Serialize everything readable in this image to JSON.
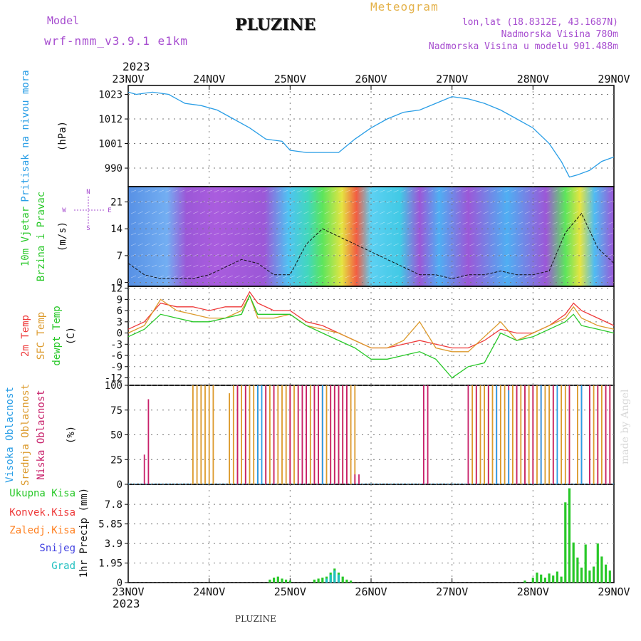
{
  "header": {
    "model_label": "Model",
    "model_name": "wrf-nmm_v3.9.1 e1km",
    "station": "PLUZINE",
    "product": "Meteogram",
    "location": "lon,lat (18.8312E, 43.1687N)",
    "altitude": "Nadmorska Visina 780m",
    "model_altitude": "Nadmorska Visina u modelu 901.488m",
    "footer_station": "PLUZINE",
    "credit": "made by Angel",
    "year_top": "2023",
    "year_bottom": "2023"
  },
  "colors": {
    "purple": "#a64ccf",
    "gold": "#e4b24a",
    "pressure": "#2a9ee6",
    "temp2m": "#ee3a3a",
    "sfc": "#dc9a2c",
    "dewpt": "#28c828",
    "high_cloud": "#2a9ee6",
    "mid_cloud": "#dc9a2c",
    "low_cloud": "#c8206a",
    "total_precip": "#28c828",
    "conv_precip": "#ee3a3a",
    "frozen_precip": "#ff8020",
    "snow": "#4040e0",
    "graupel": "#20c0c0"
  },
  "time_axis": {
    "labels": [
      "23NOV",
      "24NOV",
      "25NOV",
      "26NOV",
      "27NOV",
      "28NOV",
      "29NOV"
    ]
  },
  "chart_data": [
    {
      "type": "line",
      "panel": "pressure",
      "ylabel": [
        "Pritisak na nivou mora",
        "(hPa)"
      ],
      "yticks": [
        990,
        1001,
        1012,
        1023
      ],
      "ylim": [
        983,
        1027
      ],
      "x_days": [
        0,
        0.1,
        0.3,
        0.5,
        0.7,
        0.9,
        1.1,
        1.3,
        1.5,
        1.7,
        1.9,
        2.0,
        2.2,
        2.4,
        2.6,
        2.8,
        3.0,
        3.2,
        3.4,
        3.6,
        3.8,
        4.0,
        4.2,
        4.4,
        4.6,
        4.8,
        5.0,
        5.2,
        5.35,
        5.45,
        5.55,
        5.7,
        5.85,
        6.0
      ],
      "series": [
        {
          "values": [
            1024,
            1023,
            1024,
            1023,
            1019,
            1018,
            1016,
            1012,
            1008,
            1003,
            1002,
            998,
            997,
            997,
            997,
            1003,
            1008,
            1012,
            1015,
            1016,
            1019,
            1022,
            1021,
            1019,
            1016,
            1012,
            1008,
            1001,
            993,
            986,
            987,
            989,
            993,
            995
          ]
        }
      ]
    },
    {
      "type": "line",
      "panel": "wind",
      "ylabel": [
        "10m Vjetar",
        "Brzina i Pravac",
        "(m/s)"
      ],
      "compass": [
        "N",
        "S",
        "E",
        "W"
      ],
      "yticks": [
        0,
        7,
        14,
        21
      ],
      "ylim": [
        -1,
        25
      ],
      "x_days": [
        0,
        0.2,
        0.4,
        0.6,
        0.8,
        1.0,
        1.2,
        1.4,
        1.6,
        1.8,
        2.0,
        2.2,
        2.4,
        2.6,
        2.8,
        3.0,
        3.2,
        3.4,
        3.6,
        3.8,
        4.0,
        4.2,
        4.4,
        4.6,
        4.8,
        5.0,
        5.2,
        5.4,
        5.6,
        5.8,
        6.0
      ],
      "series": [
        {
          "values": [
            5,
            2,
            1,
            1,
            1,
            2,
            4,
            6,
            5,
            2,
            2,
            10,
            14,
            12,
            10,
            8,
            6,
            4,
            2,
            2,
            1,
            2,
            2,
            3,
            2,
            2,
            3,
            13,
            18,
            9,
            5
          ]
        }
      ]
    },
    {
      "type": "line",
      "panel": "temperature",
      "ylabel": [
        "2m Temp",
        "SFC Temp",
        "dewpt Temp",
        "(C)"
      ],
      "yticks": [
        -12,
        -9,
        -6,
        -3,
        0,
        3,
        6,
        9,
        12
      ],
      "ylim": [
        -14,
        12.5
      ],
      "x_days": [
        0,
        0.2,
        0.4,
        0.6,
        0.8,
        1.0,
        1.2,
        1.4,
        1.5,
        1.6,
        1.8,
        2.0,
        2.2,
        2.4,
        2.6,
        2.8,
        3.0,
        3.2,
        3.4,
        3.6,
        3.8,
        4.0,
        4.2,
        4.4,
        4.6,
        4.8,
        5.0,
        5.2,
        5.4,
        5.5,
        5.6,
        5.8,
        6.0
      ],
      "series": [
        {
          "name": "2m Temp",
          "values": [
            1,
            3,
            8,
            7,
            7,
            6,
            7,
            7,
            11,
            8,
            6,
            6,
            3,
            2,
            0,
            -2,
            -4,
            -4,
            -3,
            -2,
            -3,
            -4,
            -4,
            -2,
            1,
            0,
            0,
            2,
            5,
            8,
            6,
            4,
            2
          ]
        },
        {
          "name": "SFC Temp",
          "values": [
            0,
            2,
            9,
            6,
            5,
            4,
            4,
            6,
            10,
            4,
            4,
            5,
            2,
            1,
            0,
            -2,
            -4,
            -4,
            -2,
            3,
            -4,
            -5,
            -5,
            -1,
            3,
            -2,
            0,
            2,
            4,
            7,
            4,
            2,
            1
          ]
        },
        {
          "name": "dewpt Temp",
          "values": [
            -1,
            1,
            5,
            4,
            3,
            3,
            4,
            5,
            10,
            5,
            5,
            5,
            2,
            0,
            -2,
            -4,
            -7,
            -7,
            -6,
            -5,
            -7,
            -12,
            -9,
            -8,
            0,
            -2,
            -1,
            1,
            3,
            5,
            2,
            1,
            0
          ]
        }
      ]
    },
    {
      "type": "bar",
      "panel": "clouds",
      "ylabel": [
        "Visoka Oblacnost",
        "Srednja Oblacnost",
        "Niska Oblacnost",
        "(%)"
      ],
      "yticks": [
        0,
        25,
        50,
        75,
        100
      ],
      "ylim": [
        0,
        100
      ],
      "series": [
        {
          "name": "Visoka Oblacnost",
          "x_days": [
            1.6,
            1.65,
            2.4,
            4.55,
            4.7,
            5.1,
            5.3,
            5.6
          ],
          "values": [
            100,
            100,
            100,
            100,
            95,
            100,
            100,
            100
          ]
        },
        {
          "name": "Srednja Oblacnost",
          "x_days": [
            0.8,
            0.85,
            0.9,
            0.95,
            1.0,
            1.05,
            1.25,
            1.3,
            1.35,
            1.4,
            1.45,
            1.5,
            1.55,
            1.6,
            1.7,
            1.75,
            1.8,
            1.85,
            1.9,
            1.95,
            2.0,
            2.05,
            2.1,
            2.15,
            2.2,
            2.25,
            2.3,
            2.35,
            2.4,
            2.45,
            2.5,
            2.55,
            2.6,
            2.65,
            2.7,
            2.75,
            2.8,
            4.25,
            4.3,
            4.35,
            4.4,
            4.45,
            4.5,
            4.6,
            4.65,
            4.75,
            4.8,
            4.85,
            4.9,
            4.95,
            5.0,
            5.05,
            5.15,
            5.2,
            5.25,
            5.35,
            5.4,
            5.45,
            5.55,
            5.7,
            5.75,
            5.8,
            5.85,
            5.9,
            5.95
          ],
          "values": [
            100,
            100,
            100,
            100,
            100,
            100,
            92,
            100,
            100,
            100,
            100,
            100,
            100,
            100,
            100,
            100,
            100,
            100,
            100,
            100,
            100,
            100,
            100,
            100,
            100,
            100,
            100,
            100,
            100,
            100,
            100,
            100,
            100,
            100,
            100,
            100,
            100,
            100,
            100,
            100,
            100,
            100,
            100,
            100,
            100,
            100,
            100,
            100,
            100,
            100,
            100,
            100,
            100,
            100,
            100,
            100,
            100,
            100,
            100,
            100,
            100,
            100,
            100,
            100,
            100
          ]
        },
        {
          "name": "Niska Oblacnost",
          "x_days": [
            0.2,
            0.25,
            1.35,
            1.45,
            1.6,
            1.7,
            1.8,
            2.0,
            2.1,
            2.15,
            2.2,
            2.3,
            2.35,
            2.4,
            2.5,
            2.55,
            2.6,
            2.65,
            2.7,
            2.8,
            2.85,
            3.65,
            3.7,
            4.2,
            4.3,
            4.45,
            4.55,
            4.7,
            4.8,
            4.9,
            5.0,
            5.1,
            5.25,
            5.45,
            5.6,
            5.7,
            5.8,
            5.9,
            5.95
          ],
          "values": [
            30,
            86,
            100,
            100,
            100,
            100,
            100,
            100,
            100,
            100,
            100,
            100,
            100,
            100,
            100,
            100,
            100,
            100,
            100,
            10,
            10,
            100,
            100,
            100,
            100,
            100,
            100,
            100,
            100,
            100,
            100,
            100,
            100,
            100,
            100,
            100,
            100,
            100,
            100
          ]
        }
      ]
    },
    {
      "type": "bar",
      "panel": "precipitation",
      "ylabel": [
        "Ukupna Kisa",
        "Konvek.Kisa",
        "Zaledj.Kisa",
        "Snijeg",
        "Grad",
        "1hr Precip (mm)"
      ],
      "yticks": [
        0,
        1.95,
        3.9,
        5.85,
        7.8
      ],
      "ylim": [
        0,
        9.8
      ],
      "series": [
        {
          "name": "Ukupna Kisa",
          "x_days": [
            1.75,
            1.8,
            1.85,
            1.9,
            1.95,
            2.0,
            2.3,
            2.35,
            2.4,
            2.45,
            2.5,
            2.55,
            2.6,
            2.65,
            2.7,
            2.75,
            4.9,
            5.0,
            5.05,
            5.1,
            5.15,
            5.2,
            5.25,
            5.3,
            5.35,
            5.4,
            5.45,
            5.5,
            5.55,
            5.6,
            5.65,
            5.7,
            5.75,
            5.8,
            5.85,
            5.9,
            5.95
          ],
          "values": [
            0.3,
            0.5,
            0.6,
            0.4,
            0.3,
            0.2,
            0.3,
            0.4,
            0.5,
            0.6,
            1.0,
            1.4,
            1.0,
            0.6,
            0.3,
            0.2,
            0.2,
            0.5,
            1.0,
            0.8,
            0.5,
            0.9,
            0.7,
            1.1,
            0.6,
            8.0,
            9.4,
            4.0,
            2.5,
            1.5,
            3.8,
            1.2,
            1.6,
            3.9,
            2.6,
            1.8,
            1.2
          ]
        },
        {
          "name": "Grad",
          "x_days": [
            2.45,
            2.5,
            2.55,
            2.6
          ],
          "values": [
            0.4,
            0.8,
            1.2,
            0.8
          ]
        }
      ]
    }
  ]
}
